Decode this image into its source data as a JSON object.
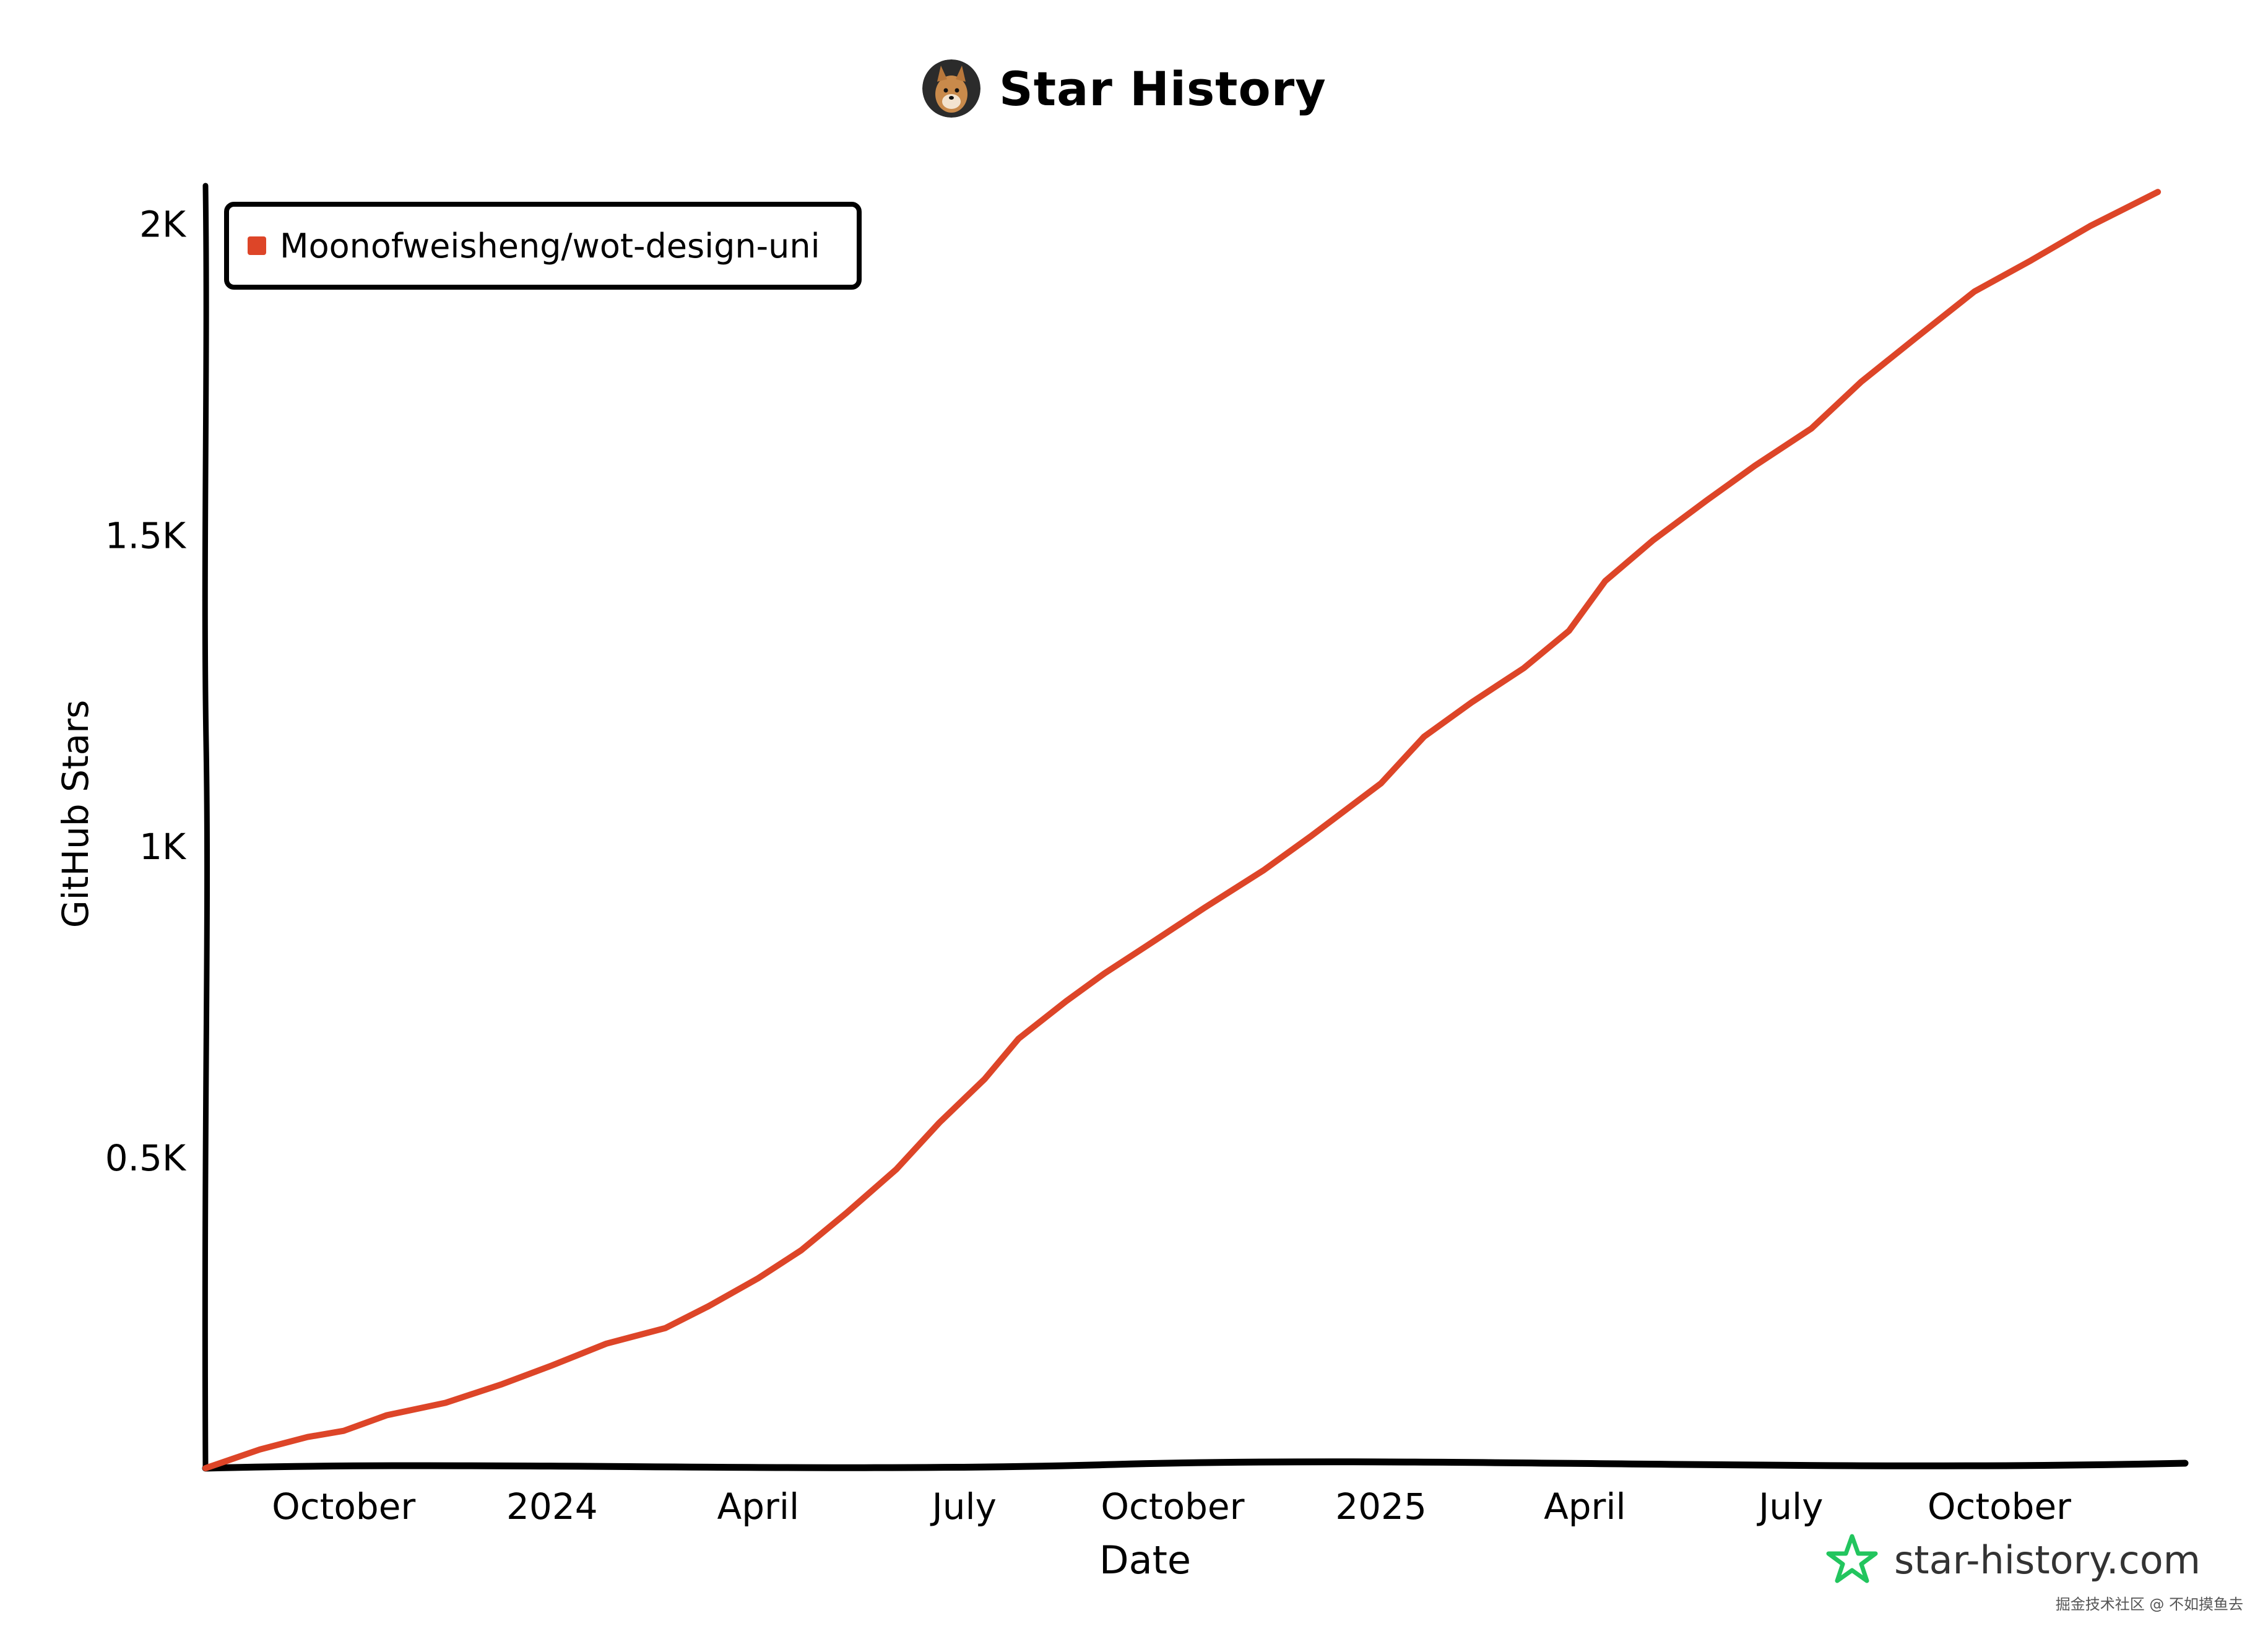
{
  "header": {
    "title": "Star History",
    "avatar_icon": "dog-avatar-icon"
  },
  "watermark": {
    "site": "star-history.com",
    "site_icon": "star-outline-icon",
    "site_icon_color": "#22c55e",
    "corner_note": "掘金技术社区 @ 不如摸鱼去"
  },
  "colors": {
    "series": "#dd4528",
    "axis": "#000000",
    "background": "#ffffff"
  },
  "chart_data": {
    "type": "line",
    "title": "Star History",
    "xlabel": "Date",
    "ylabel": "GitHub Stars",
    "xlim": [
      "2023-08-01",
      "2025-12-22"
    ],
    "ylim": [
      0,
      2060
    ],
    "grid": false,
    "legend_position": "top-left",
    "x_ticks": [
      {
        "date": "2023-10-01",
        "label": "October"
      },
      {
        "date": "2024-01-01",
        "label": "2024"
      },
      {
        "date": "2024-04-01",
        "label": "April"
      },
      {
        "date": "2024-07-01",
        "label": "July"
      },
      {
        "date": "2024-10-01",
        "label": "October"
      },
      {
        "date": "2025-01-01",
        "label": "2025"
      },
      {
        "date": "2025-04-01",
        "label": "April"
      },
      {
        "date": "2025-07-01",
        "label": "July"
      },
      {
        "date": "2025-10-01",
        "label": "October"
      }
    ],
    "y_ticks": [
      {
        "value": 500,
        "label": "0.5K"
      },
      {
        "value": 1000,
        "label": "1K"
      },
      {
        "value": 1500,
        "label": "1.5K"
      },
      {
        "value": 2000,
        "label": "2K"
      }
    ],
    "series": [
      {
        "name": "Moonofweisheng/wot-design-uni",
        "color": "#dd4528",
        "points": [
          [
            "2023-08-01",
            0
          ],
          [
            "2023-08-25",
            30
          ],
          [
            "2023-09-15",
            50
          ],
          [
            "2023-10-01",
            60
          ],
          [
            "2023-10-20",
            85
          ],
          [
            "2023-11-15",
            105
          ],
          [
            "2023-12-10",
            135
          ],
          [
            "2024-01-01",
            165
          ],
          [
            "2024-01-25",
            200
          ],
          [
            "2024-02-20",
            225
          ],
          [
            "2024-03-10",
            260
          ],
          [
            "2024-04-01",
            305
          ],
          [
            "2024-04-20",
            350
          ],
          [
            "2024-05-10",
            410
          ],
          [
            "2024-06-01",
            480
          ],
          [
            "2024-06-20",
            555
          ],
          [
            "2024-07-10",
            625
          ],
          [
            "2024-07-25",
            690
          ],
          [
            "2024-08-15",
            750
          ],
          [
            "2024-09-01",
            795
          ],
          [
            "2024-09-20",
            840
          ],
          [
            "2024-10-15",
            900
          ],
          [
            "2024-11-10",
            960
          ],
          [
            "2024-12-01",
            1015
          ],
          [
            "2025-01-01",
            1100
          ],
          [
            "2025-01-20",
            1175
          ],
          [
            "2025-02-10",
            1230
          ],
          [
            "2025-03-05",
            1285
          ],
          [
            "2025-03-25",
            1345
          ],
          [
            "2025-04-10",
            1425
          ],
          [
            "2025-05-01",
            1490
          ],
          [
            "2025-05-25",
            1555
          ],
          [
            "2025-06-15",
            1610
          ],
          [
            "2025-07-10",
            1670
          ],
          [
            "2025-08-01",
            1745
          ],
          [
            "2025-08-25",
            1815
          ],
          [
            "2025-09-20",
            1890
          ],
          [
            "2025-10-15",
            1940
          ],
          [
            "2025-11-10",
            1995
          ],
          [
            "2025-12-10",
            2050
          ]
        ]
      }
    ]
  }
}
